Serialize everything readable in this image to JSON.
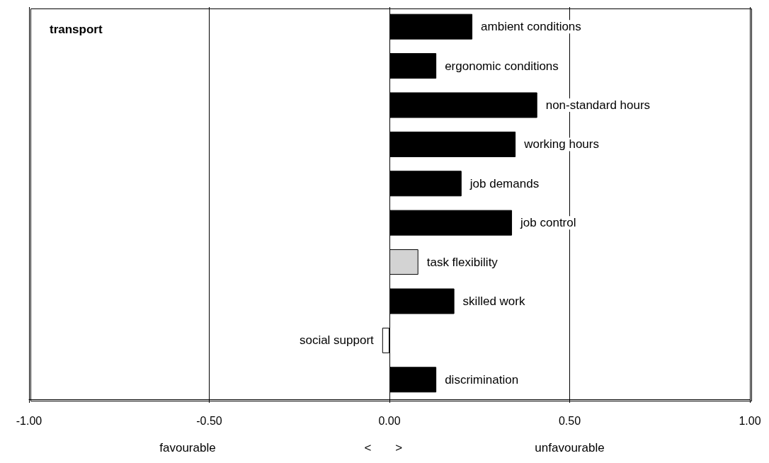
{
  "chart_data": {
    "type": "bar",
    "orientation": "horizontal",
    "title": "transport",
    "categories": [
      "ambient conditions",
      "ergonomic conditions",
      "non-standard hours",
      "working hours",
      "job demands",
      "job control",
      "task flexibility",
      "skilled work",
      "social support",
      "discrimination"
    ],
    "values": [
      0.23,
      0.13,
      0.41,
      0.35,
      0.2,
      0.34,
      0.08,
      0.18,
      -0.02,
      0.13
    ],
    "colors": [
      "#000000",
      "#000000",
      "#000000",
      "#000000",
      "#000000",
      "#000000",
      "#d3d3d3",
      "#000000",
      "#ffffff",
      "#000000"
    ],
    "xlim": [
      -1,
      1
    ],
    "xticks": [
      {
        "value": -1,
        "label": "-1.00"
      },
      {
        "value": -0.5,
        "label": "-0.50"
      },
      {
        "value": 0,
        "label": "0.00"
      },
      {
        "value": 0.5,
        "label": "0.50"
      },
      {
        "value": 1,
        "label": "1.00"
      }
    ],
    "grid": "x",
    "tick_labels": "x",
    "annotations": [
      "favourable",
      "<",
      ">",
      "unfavourable"
    ]
  }
}
